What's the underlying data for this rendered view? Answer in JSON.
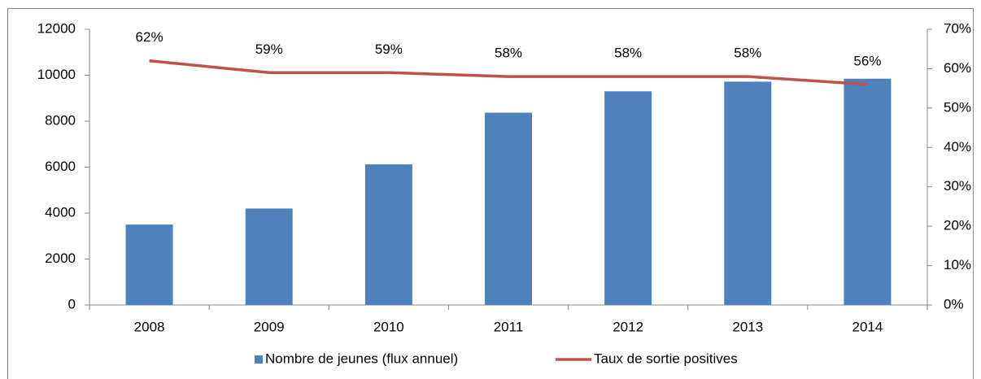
{
  "chart_data": {
    "type": "bar",
    "categories": [
      "2008",
      "2009",
      "2010",
      "2011",
      "2012",
      "2013",
      "2014"
    ],
    "series": [
      {
        "name": "Nombre de jeunes (flux annuel)",
        "color": "#4f81bd",
        "values": [
          3500,
          4200,
          6120,
          8370,
          9300,
          9720,
          9850
        ]
      },
      {
        "name": "Taux de sortie positives",
        "color": "#c0504d",
        "type": "line",
        "axis": "y2",
        "values": [
          62,
          59,
          59,
          58,
          58,
          58,
          56
        ],
        "value_labels": [
          "62%",
          "59%",
          "59%",
          "58%",
          "58%",
          "58%",
          "56%"
        ]
      }
    ],
    "ylim": [
      0,
      12000
    ],
    "yticks": [
      0,
      2000,
      4000,
      6000,
      8000,
      10000,
      12000
    ],
    "y2lim": [
      0,
      70
    ],
    "y2ticks": [
      {
        "value": 0,
        "label": "0%"
      },
      {
        "value": 10,
        "label": "10%"
      },
      {
        "value": 20,
        "label": "20%"
      },
      {
        "value": 30,
        "label": "30%"
      },
      {
        "value": 40,
        "label": "40%"
      },
      {
        "value": 50,
        "label": "50%"
      },
      {
        "value": 60,
        "label": "60%"
      },
      {
        "value": 70,
        "label": "70%"
      }
    ],
    "legend": "bottom"
  }
}
